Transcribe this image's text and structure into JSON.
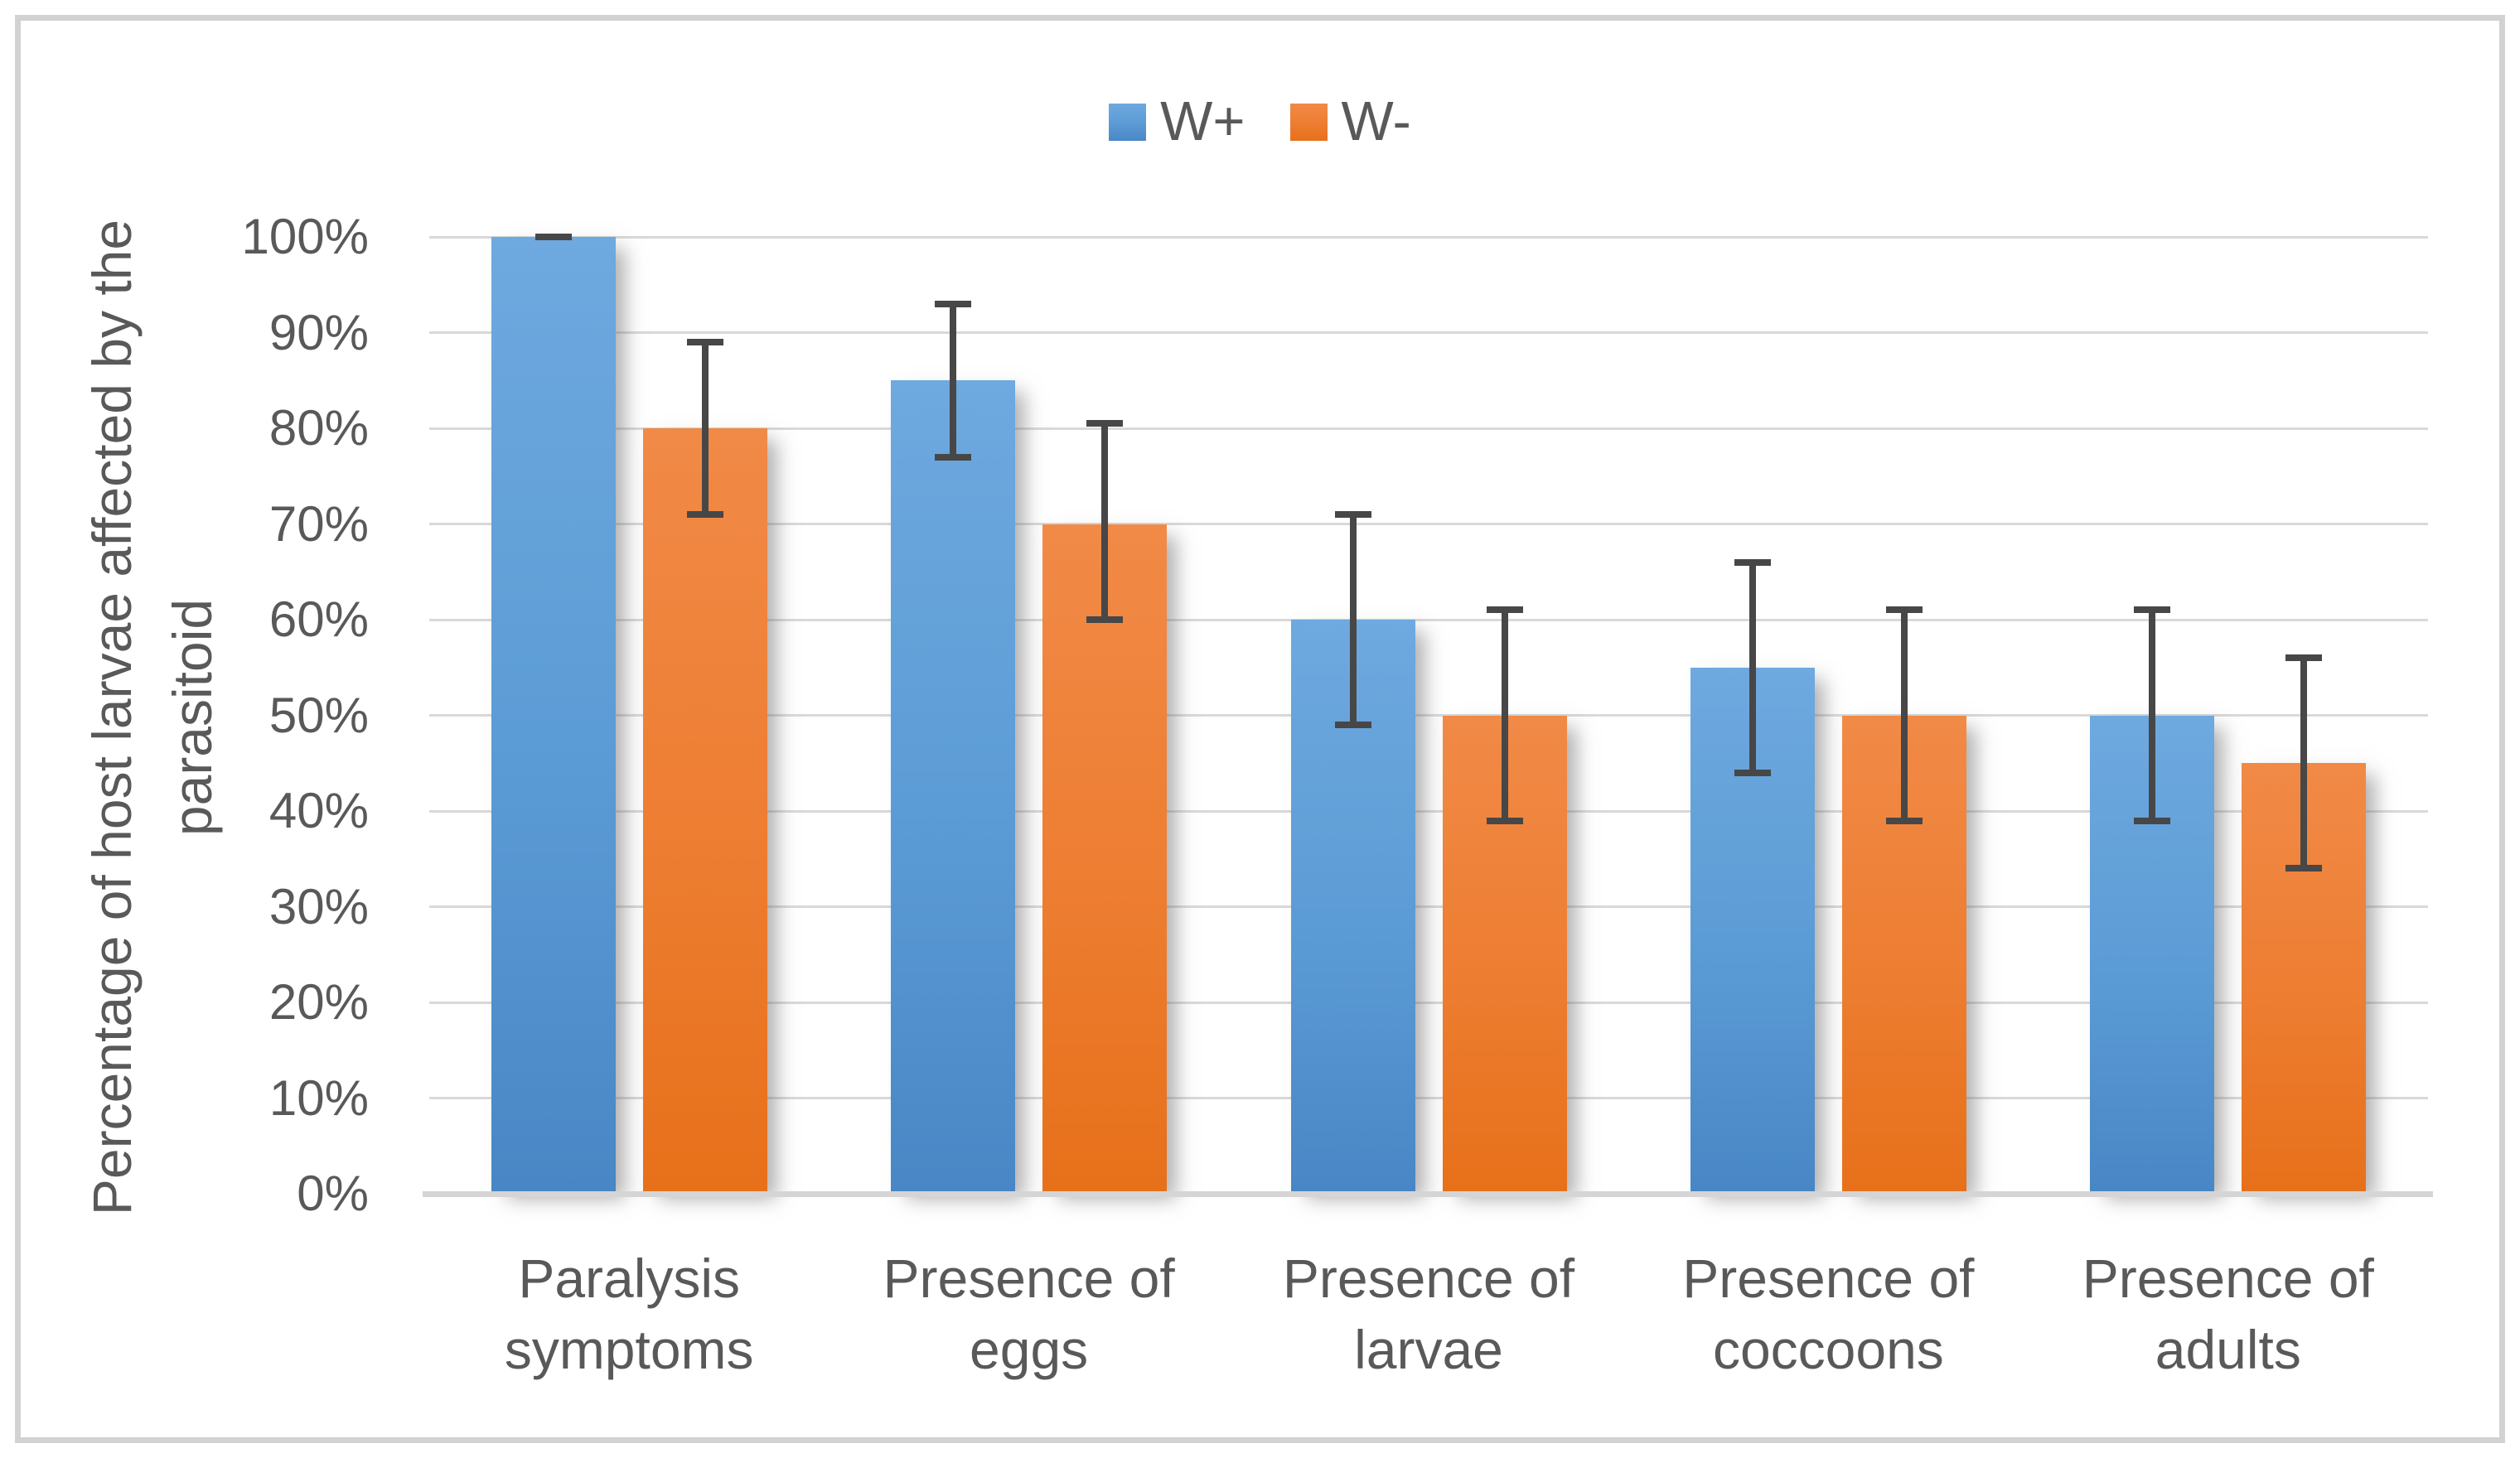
{
  "chart_data": {
    "type": "bar",
    "title": "",
    "xlabel": "",
    "ylabel": "Percentage of host larvae affected by the parasitoid",
    "ylabel_lines": [
      "Percentage of host larvae affected by the",
      "parasitoid"
    ],
    "ylim": [
      0,
      100
    ],
    "ytick_step": 10,
    "ytick_labels": [
      "0%",
      "10%",
      "20%",
      "30%",
      "40%",
      "50%",
      "60%",
      "70%",
      "80%",
      "90%",
      "100%"
    ],
    "grid": true,
    "legend_position": "top-center",
    "categories": [
      "Paralysis symptoms",
      "Presence of eggs",
      "Presence of larvae",
      "Presence of coccoons",
      "Presence of adults"
    ],
    "series": [
      {
        "name": "W+",
        "color": "#5B9BD5",
        "values": [
          100,
          85,
          60,
          55,
          50
        ],
        "err_low": [
          100,
          77,
          49,
          44,
          39
        ],
        "err_high": [
          100,
          93,
          71,
          66,
          61
        ]
      },
      {
        "name": "W-",
        "color": "#ED7D31",
        "values": [
          80,
          70,
          50,
          50,
          45
        ],
        "err_low": [
          71,
          60,
          39,
          39,
          34
        ],
        "err_high": [
          89,
          80.5,
          61,
          61,
          56
        ]
      }
    ],
    "error_bar_color": "#474747",
    "gridline_color": "#D9D9D9",
    "axis_line_color": "#D5D5D5",
    "text_color": "#595959",
    "frame_border_color": "#D2D2D2"
  }
}
